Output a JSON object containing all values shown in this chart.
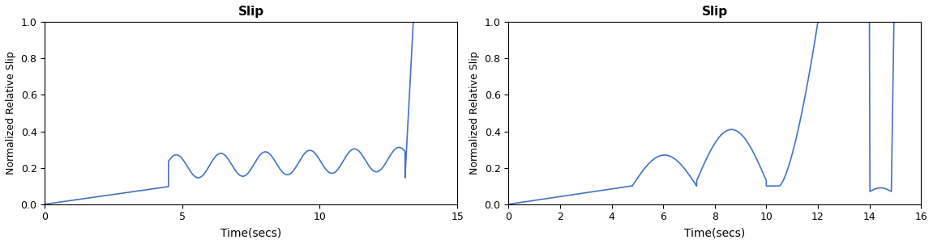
{
  "title": "Slip",
  "xlabel": "Time(secs)",
  "ylabel": "Normalized Relative Slip",
  "line_color": "#4472C4",
  "line_width": 1.2,
  "plot1": {
    "xlim": [
      0,
      15
    ],
    "ylim": [
      0,
      1
    ],
    "xticks": [
      0,
      5,
      10,
      15
    ],
    "yticks": [
      0,
      0.2,
      0.4,
      0.6,
      0.8,
      1.0
    ]
  },
  "plot2": {
    "xlim": [
      0,
      16
    ],
    "ylim": [
      0,
      1
    ],
    "xticks": [
      0,
      2,
      4,
      6,
      8,
      10,
      12,
      14,
      16
    ],
    "yticks": [
      0,
      0.2,
      0.4,
      0.6,
      0.8,
      1.0
    ]
  },
  "bg_color": "#ffffff"
}
